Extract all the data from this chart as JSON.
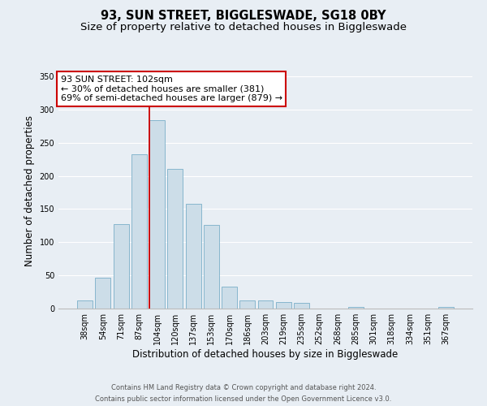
{
  "title": "93, SUN STREET, BIGGLESWADE, SG18 0BY",
  "subtitle": "Size of property relative to detached houses in Biggleswade",
  "xlabel": "Distribution of detached houses by size in Biggleswade",
  "ylabel": "Number of detached properties",
  "bar_labels": [
    "38sqm",
    "54sqm",
    "71sqm",
    "87sqm",
    "104sqm",
    "120sqm",
    "137sqm",
    "153sqm",
    "170sqm",
    "186sqm",
    "203sqm",
    "219sqm",
    "235sqm",
    "252sqm",
    "268sqm",
    "285sqm",
    "301sqm",
    "318sqm",
    "334sqm",
    "351sqm",
    "367sqm"
  ],
  "bar_values": [
    12,
    47,
    127,
    232,
    284,
    211,
    158,
    126,
    33,
    12,
    12,
    10,
    8,
    0,
    0,
    3,
    0,
    0,
    0,
    0,
    3
  ],
  "bar_color": "#ccdde8",
  "bar_edge_color": "#7aafc8",
  "vline_color": "#cc0000",
  "ylim": [
    0,
    355
  ],
  "yticks": [
    0,
    50,
    100,
    150,
    200,
    250,
    300,
    350
  ],
  "annotation_title": "93 SUN STREET: 102sqm",
  "annotation_line1": "← 30% of detached houses are smaller (381)",
  "annotation_line2": "69% of semi-detached houses are larger (879) →",
  "annotation_box_color": "#ffffff",
  "annotation_box_edge": "#cc0000",
  "footer_line1": "Contains HM Land Registry data © Crown copyright and database right 2024.",
  "footer_line2": "Contains public sector information licensed under the Open Government Licence v3.0.",
  "bg_color": "#e8eef4",
  "plot_bg_color": "#e8eef4",
  "grid_color": "#ffffff",
  "title_fontsize": 10.5,
  "subtitle_fontsize": 9.5,
  "axis_label_fontsize": 8.5,
  "tick_fontsize": 7,
  "annotation_fontsize": 8,
  "footer_fontsize": 6
}
